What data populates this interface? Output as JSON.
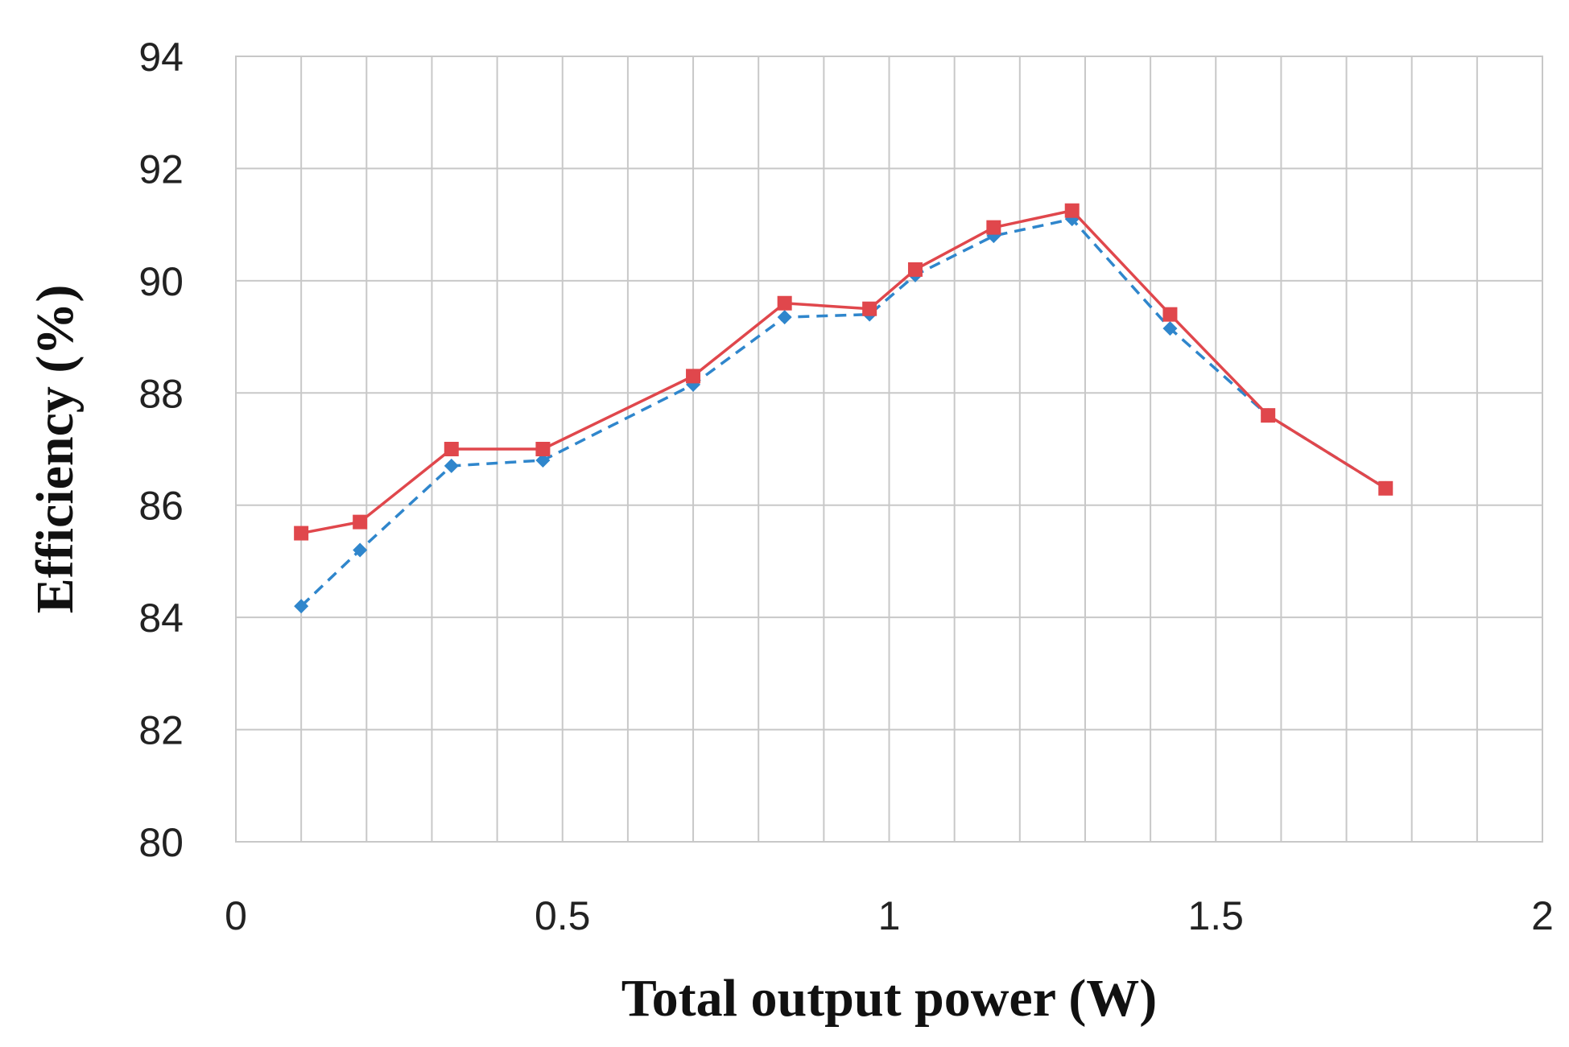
{
  "chart_data": {
    "type": "line",
    "xlabel": "Total output power (W)",
    "ylabel": "Efficiency (%)",
    "xlim": [
      0,
      2
    ],
    "ylim": [
      80,
      94
    ],
    "x_ticks": [
      "0",
      "0.5",
      "1",
      "1.5",
      "2"
    ],
    "y_ticks": [
      "80",
      "82",
      "84",
      "86",
      "88",
      "90",
      "92",
      "94"
    ],
    "grid": true,
    "x_minor_grid_step": 0.1,
    "series": [
      {
        "color": "#e0474c",
        "line_style": "solid",
        "marker": "square",
        "points": [
          [
            0.1,
            85.5
          ],
          [
            0.19,
            85.7
          ],
          [
            0.33,
            87.0
          ],
          [
            0.47,
            87.0
          ],
          [
            0.7,
            88.3
          ],
          [
            0.84,
            89.6
          ],
          [
            0.97,
            89.5
          ],
          [
            1.04,
            90.2
          ],
          [
            1.16,
            90.95
          ],
          [
            1.28,
            91.25
          ],
          [
            1.43,
            89.4
          ],
          [
            1.58,
            87.6
          ],
          [
            1.76,
            86.3
          ]
        ]
      },
      {
        "color": "#2f86cc",
        "line_style": "dashed",
        "marker": "diamond",
        "points": [
          [
            0.1,
            84.2
          ],
          [
            0.19,
            85.2
          ],
          [
            0.33,
            86.7
          ],
          [
            0.47,
            86.8
          ],
          [
            0.7,
            88.15
          ],
          [
            0.84,
            89.35
          ],
          [
            0.97,
            89.4
          ],
          [
            1.04,
            90.1
          ],
          [
            1.16,
            90.8
          ],
          [
            1.28,
            91.1
          ],
          [
            1.43,
            89.15
          ],
          [
            1.58,
            87.6
          ],
          [
            1.76,
            86.3
          ]
        ]
      }
    ]
  }
}
